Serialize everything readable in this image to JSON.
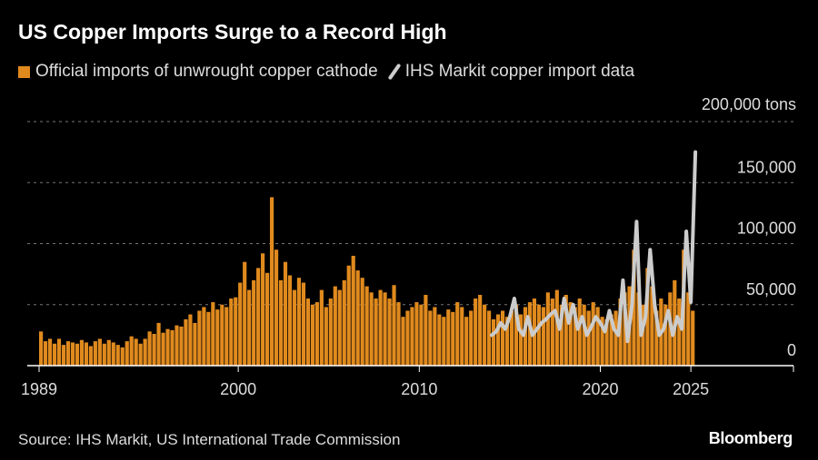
{
  "title": "US Copper Imports Surge to a Record High",
  "source": "Source: IHS Markit, US International Trade Commission",
  "brand": "Bloomberg",
  "colors": {
    "bars": "#e08a1e",
    "line": "#cccccc",
    "grid": "#777777",
    "axis": "#ffffff"
  },
  "chart_data": {
    "type": "bar+line",
    "title": "US Copper Imports Surge to a Record High",
    "unit": "tons",
    "ylim": [
      0,
      200000
    ],
    "xlim": [
      1989,
      2027
    ],
    "y_ticks": [
      {
        "value": 0,
        "label": "0"
      },
      {
        "value": 50000,
        "label": "50,000"
      },
      {
        "value": 100000,
        "label": "100,000"
      },
      {
        "value": 150000,
        "label": "150,000"
      },
      {
        "value": 200000,
        "label": "200,000 tons"
      }
    ],
    "x_ticks": [
      {
        "value": 1989,
        "label": "1989"
      },
      {
        "value": 2000,
        "label": "2000"
      },
      {
        "value": 2010,
        "label": "2010"
      },
      {
        "value": 2020,
        "label": "2020"
      },
      {
        "value": 2025,
        "label": "2025"
      }
    ],
    "legend": [
      {
        "name": "Official imports of unwrought copper cathode",
        "style": "bar"
      },
      {
        "name": "IHS Markit copper import data",
        "style": "line"
      }
    ],
    "series": [
      {
        "name": "Official imports of unwrought copper cathode",
        "type": "bar",
        "start": 1989,
        "step": 0.25,
        "unit_scale": 1000,
        "values": [
          28,
          20,
          22,
          18,
          22,
          17,
          20,
          19,
          18,
          21,
          19,
          16,
          20,
          22,
          18,
          21,
          19,
          17,
          15,
          20,
          24,
          22,
          18,
          22,
          28,
          26,
          35,
          27,
          30,
          29,
          33,
          32,
          38,
          42,
          35,
          45,
          48,
          44,
          52,
          46,
          50,
          48,
          55,
          56,
          68,
          85,
          62,
          70,
          80,
          92,
          76,
          138,
          95,
          70,
          85,
          74,
          62,
          72,
          68,
          55,
          50,
          52,
          62,
          48,
          55,
          65,
          62,
          70,
          82,
          90,
          78,
          72,
          65,
          60,
          55,
          62,
          60,
          55,
          66,
          52,
          40,
          45,
          48,
          52,
          50,
          58,
          45,
          48,
          42,
          40,
          46,
          44,
          52,
          48,
          40,
          45,
          55,
          58,
          50,
          45,
          38,
          42,
          45,
          40,
          45,
          50,
          42,
          48,
          52,
          55,
          50,
          48,
          60,
          55,
          62,
          50,
          58,
          52,
          48,
          55,
          50,
          45,
          52,
          48,
          40,
          38,
          42,
          45,
          55,
          60,
          65,
          95,
          60,
          50,
          80,
          65,
          45,
          55,
          50,
          60,
          70,
          55,
          95,
          60,
          45
        ]
      },
      {
        "name": "IHS Markit copper import data",
        "type": "line",
        "start": 2014,
        "step": 0.25,
        "unit_scale": 1000,
        "values": [
          25,
          28,
          35,
          30,
          40,
          55,
          30,
          25,
          40,
          25,
          30,
          35,
          38,
          42,
          45,
          30,
          55,
          35,
          50,
          30,
          40,
          25,
          32,
          40,
          35,
          28,
          45,
          30,
          25,
          70,
          20,
          50,
          118,
          25,
          40,
          95,
          50,
          25,
          30,
          45,
          25,
          40,
          30,
          110,
          52,
          175
        ]
      }
    ]
  }
}
